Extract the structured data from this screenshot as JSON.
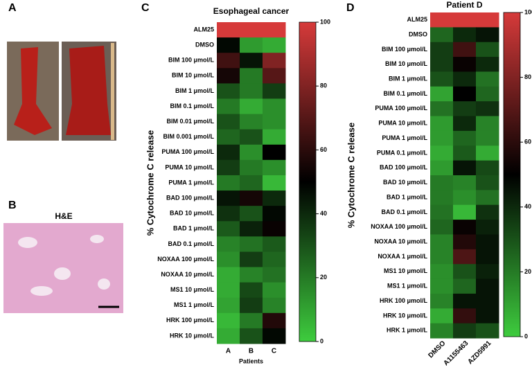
{
  "figure": {
    "panel_labels": [
      "A",
      "B",
      "C",
      "D"
    ],
    "stain_label": "H&E"
  },
  "chart_data": [
    {
      "type": "heatmap",
      "title": "Esophageal cancer",
      "x_label": "Patients",
      "colorbar_label": "% Cytochrome C release",
      "x_categories": [
        "A",
        "B",
        "C"
      ],
      "y_categories": [
        "ALM25",
        "DMSO",
        "BIM 100 μmol/L",
        "BIM 10 μmol/L",
        "BIM 1 μmol/L",
        "BIM 0.1 μmol/L",
        "BIM 0.01 μmol/L",
        "BIM 0.001 μmol/L",
        "PUMA 100 μmol/L",
        "PUMA 10 μmol/L",
        "PUMA 1 μmol/L",
        "BAD 100 μmol/L",
        "BAD 10 μmol/L",
        "BAD 1 μmol/L",
        "BAD 0.1 μmol/L",
        "NOXAA 100 μmol/L",
        "NOXAA 10 μmol/L",
        "MS1 10 μmol/L",
        "MS1 1 μmol/L",
        "HRK 100 μmol/L",
        "HRK 10 μmol/L"
      ],
      "values": [
        [
          100,
          100,
          100
        ],
        [
          48,
          12,
          8
        ],
        [
          65,
          45,
          80
        ],
        [
          55,
          20,
          70
        ],
        [
          30,
          20,
          35
        ],
        [
          20,
          8,
          15
        ],
        [
          30,
          18,
          15
        ],
        [
          25,
          30,
          8
        ],
        [
          40,
          15,
          50
        ],
        [
          35,
          20,
          15
        ],
        [
          20,
          25,
          5
        ],
        [
          45,
          55,
          40
        ],
        [
          38,
          30,
          48
        ],
        [
          28,
          42,
          52
        ],
        [
          18,
          22,
          28
        ],
        [
          15,
          35,
          25
        ],
        [
          8,
          18,
          22
        ],
        [
          8,
          32,
          15
        ],
        [
          10,
          35,
          18
        ],
        [
          5,
          20,
          58
        ],
        [
          8,
          30,
          48
        ]
      ],
      "colormap": [
        "#3ecc3e",
        "#000000",
        "#d63a3a"
      ],
      "clim": [
        0,
        100
      ],
      "cticks": [
        0,
        20,
        40,
        60,
        80,
        100
      ]
    },
    {
      "type": "heatmap",
      "title": "Patient D",
      "colorbar_label": "% Cytochrome C release",
      "x_categories": [
        "DMSO",
        "A1155463",
        "AZD5991"
      ],
      "y_categories": [
        "ALM25",
        "DMSO",
        "BIM 100 μmol/L",
        "BIM 10 μmol/L",
        "BIM 1 μmol/L",
        "BIM 0.1 μmol/L",
        "PUMA 100 μmol/L",
        "PUMA 10 μmol/L",
        "PUMA 1 μmol/L",
        "PUMA 0.1 μmol/L",
        "BAD 100 μmol/L",
        "BAD 10 μmol/L",
        "BAD 1 μmol/L",
        "BAD 0.1 μmol/L",
        "NOXAA 100 μmol/L",
        "NOXAA 10 μmol/L",
        "NOXAA 1 μmol/L",
        "MS1 10 μmol/L",
        "MS1 1 μmol/L",
        "HRK 100 μmol/L",
        "HRK 10 μmol/L",
        "HRK 1 μmol/L"
      ],
      "values": [
        [
          100,
          100,
          100
        ],
        [
          25,
          40,
          45
        ],
        [
          35,
          65,
          30
        ],
        [
          35,
          52,
          40
        ],
        [
          30,
          40,
          22
        ],
        [
          10,
          50,
          25
        ],
        [
          22,
          35,
          38
        ],
        [
          12,
          40,
          18
        ],
        [
          12,
          25,
          18
        ],
        [
          8,
          28,
          8
        ],
        [
          12,
          45,
          32
        ],
        [
          20,
          18,
          30
        ],
        [
          20,
          15,
          22
        ],
        [
          22,
          5,
          38
        ],
        [
          25,
          52,
          42
        ],
        [
          18,
          58,
          45
        ],
        [
          18,
          68,
          45
        ],
        [
          15,
          30,
          42
        ],
        [
          15,
          25,
          45
        ],
        [
          18,
          45,
          45
        ],
        [
          8,
          62,
          45
        ],
        [
          18,
          35,
          30
        ]
      ],
      "colormap": [
        "#3ecc3e",
        "#000000",
        "#d63a3a"
      ],
      "clim": [
        0,
        100
      ],
      "cticks": [
        0,
        20,
        40,
        60,
        80,
        100
      ]
    }
  ]
}
